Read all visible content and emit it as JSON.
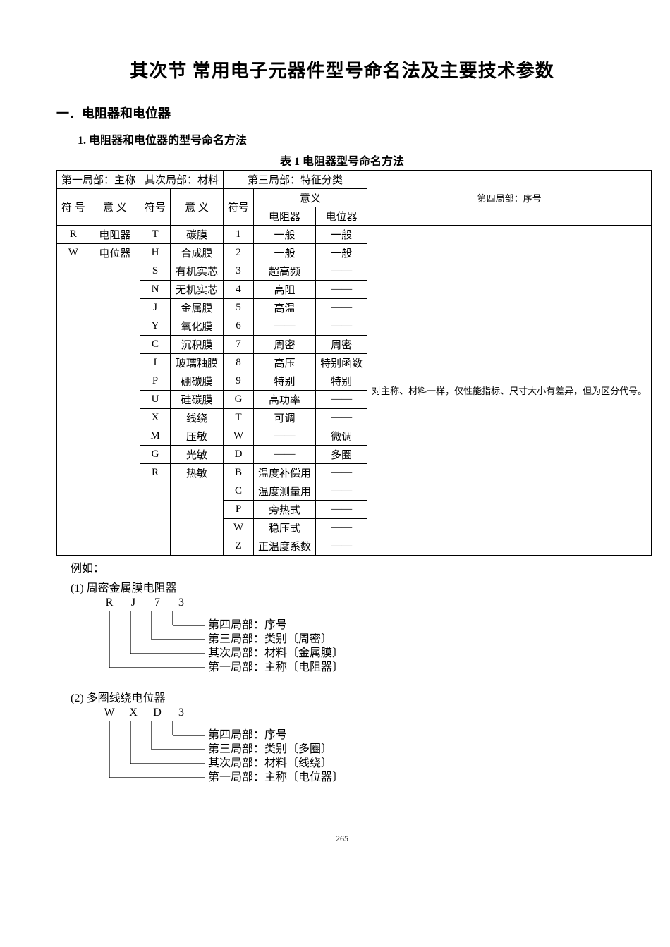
{
  "title": "其次节  常用电子元器件型号命名法及主要技术参数",
  "section1": "一．电阻器和电位器",
  "subsection1": "1.   电阻器和电位器的型号命名方法",
  "tableCaption": "表 1    电阻器型号命名方法",
  "headers": {
    "part1": "第一局部：主称",
    "part2": "其次局部：材料",
    "part3": "第三局部：特征分类",
    "part4": "第四局部：序号",
    "sym": "符 号",
    "mean": "意 义",
    "sym2": "符号",
    "mean2": "意 义",
    "sym3": "符号",
    "mean3": "意义",
    "resistor": "电阻器",
    "potentiometer": "电位器"
  },
  "rows": [
    {
      "s1": "R",
      "m1": "电阻器",
      "s2": "T",
      "m2": "碳膜",
      "s3": "1",
      "r": "一般",
      "p": "一般"
    },
    {
      "s1": "W",
      "m1": "电位器",
      "s2": "H",
      "m2": "合成膜",
      "s3": "2",
      "r": "一般",
      "p": "一般"
    },
    {
      "s1": "",
      "m1": "",
      "s2": "S",
      "m2": "有机实芯",
      "s3": "3",
      "r": "超高频",
      "p": "——"
    },
    {
      "s1": "",
      "m1": "",
      "s2": "N",
      "m2": "无机实芯",
      "s3": "4",
      "r": "高阻",
      "p": "——"
    },
    {
      "s1": "",
      "m1": "",
      "s2": "J",
      "m2": "金属膜",
      "s3": "5",
      "r": "高温",
      "p": "——"
    },
    {
      "s1": "",
      "m1": "",
      "s2": "Y",
      "m2": "氧化膜",
      "s3": "6",
      "r": "——",
      "p": "——"
    },
    {
      "s1": "",
      "m1": "",
      "s2": "C",
      "m2": "沉积膜",
      "s3": "7",
      "r": "周密",
      "p": "周密"
    },
    {
      "s1": "",
      "m1": "",
      "s2": "I",
      "m2": "玻璃釉膜",
      "s3": "8",
      "r": "高压",
      "p": "特别函数"
    },
    {
      "s1": "",
      "m1": "",
      "s2": "P",
      "m2": "硼碳膜",
      "s3": "9",
      "r": "特别",
      "p": "特别"
    },
    {
      "s1": "",
      "m1": "",
      "s2": "U",
      "m2": "硅碳膜",
      "s3": "G",
      "r": "高功率",
      "p": "——"
    },
    {
      "s1": "",
      "m1": "",
      "s2": "X",
      "m2": "线绕",
      "s3": "T",
      "r": "可调",
      "p": "——"
    },
    {
      "s1": "",
      "m1": "",
      "s2": "M",
      "m2": "压敏",
      "s3": "W",
      "r": "——",
      "p": "微调"
    },
    {
      "s1": "",
      "m1": "",
      "s2": "G",
      "m2": "光敏",
      "s3": "D",
      "r": "——",
      "p": "多圈"
    },
    {
      "s1": "",
      "m1": "",
      "s2": "R",
      "m2": "热敏",
      "s3": "B",
      "r": "温度补偿用",
      "p": "——"
    },
    {
      "s1": "",
      "m1": "",
      "s2": "",
      "m2": "",
      "s3": "C",
      "r": "温度测量用",
      "p": "——"
    },
    {
      "s1": "",
      "m1": "",
      "s2": "",
      "m2": "",
      "s3": "P",
      "r": "旁热式",
      "p": "——"
    },
    {
      "s1": "",
      "m1": "",
      "s2": "",
      "m2": "",
      "s3": "W",
      "r": "稳压式",
      "p": "——"
    },
    {
      "s1": "",
      "m1": "",
      "s2": "",
      "m2": "",
      "s3": "Z",
      "r": "正温度系数",
      "p": "——"
    }
  ],
  "noteText": "对主称、材料一样，仅性能指标、尺寸大小有差异，但为区分代号。",
  "exampleIntro": "例如：",
  "example1": {
    "label": "(1)  周密金属膜电阻器",
    "code": [
      "R",
      "J",
      "7",
      "3"
    ],
    "lines": [
      "第四局部：序号",
      "第三局部：类别〔周密〕",
      "其次局部：材料〔金属膜〕",
      "第一局部：主称〔电阻器〕"
    ]
  },
  "example2": {
    "label": "(2)  多圈线绕电位器",
    "code": [
      "W",
      "X",
      "D",
      "3"
    ],
    "lines": [
      "第四局部：序号",
      "第三局部：类别〔多圈〕",
      "其次局部：材料〔线绕〕",
      "第一局部：主称〔电位器〕"
    ]
  },
  "pageNumber": "265"
}
